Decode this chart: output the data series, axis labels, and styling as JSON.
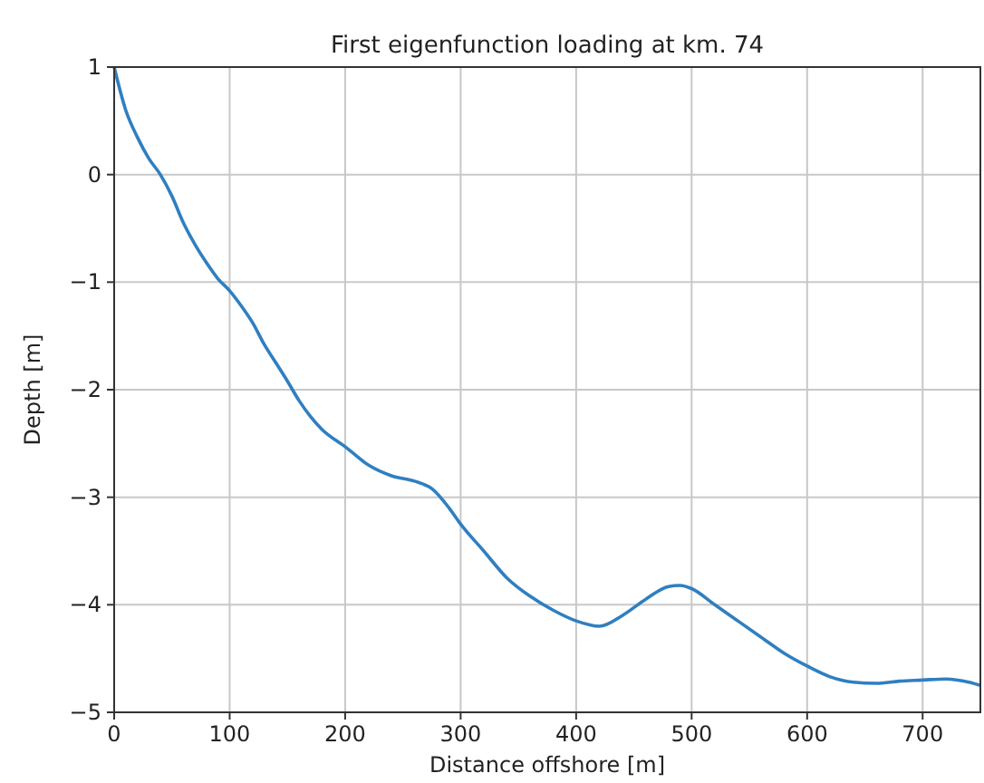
{
  "chart_data": {
    "type": "line",
    "title": "First eigenfunction loading at km. 74",
    "xlabel": "Distance offshore [m]",
    "ylabel": "Depth [m]",
    "x": [
      0,
      10,
      20,
      30,
      40,
      50,
      60,
      70,
      80,
      90,
      100,
      110,
      120,
      130,
      140,
      150,
      160,
      170,
      180,
      200,
      220,
      240,
      260,
      275,
      290,
      300,
      320,
      340,
      360,
      380,
      400,
      420,
      440,
      460,
      480,
      490,
      500,
      520,
      540,
      560,
      580,
      600,
      620,
      640,
      660,
      680,
      700,
      720,
      740,
      750
    ],
    "series": [
      {
        "color": "#2f7fc1",
        "values": [
          1.0,
          0.6,
          0.35,
          0.15,
          0.0,
          -0.2,
          -0.45,
          -0.65,
          -0.82,
          -0.97,
          -1.08,
          -1.22,
          -1.38,
          -1.58,
          -1.75,
          -1.92,
          -2.1,
          -2.25,
          -2.37,
          -2.53,
          -2.7,
          -2.8,
          -2.85,
          -2.92,
          -3.1,
          -3.25,
          -3.5,
          -3.75,
          -3.92,
          -4.05,
          -4.15,
          -4.2,
          -4.1,
          -3.95,
          -3.83,
          -3.82,
          -3.85,
          -4.0,
          -4.15,
          -4.3,
          -4.45,
          -4.57,
          -4.67,
          -4.72,
          -4.73,
          -4.71,
          -4.7,
          -4.69,
          -4.72,
          -4.75
        ]
      }
    ],
    "xlim": [
      0,
      750
    ],
    "xticks": [
      0,
      100,
      200,
      300,
      400,
      500,
      600,
      700
    ],
    "ylim": [
      -5,
      1
    ],
    "yticks": [
      {
        "value": -5,
        "label": "−5"
      },
      {
        "value": -4,
        "label": "−4"
      },
      {
        "value": -3,
        "label": "−3"
      },
      {
        "value": -2,
        "label": "−2"
      },
      {
        "value": -1,
        "label": "−1"
      },
      0,
      1
    ],
    "grid": true,
    "marker": "none",
    "line_style": "solid"
  }
}
